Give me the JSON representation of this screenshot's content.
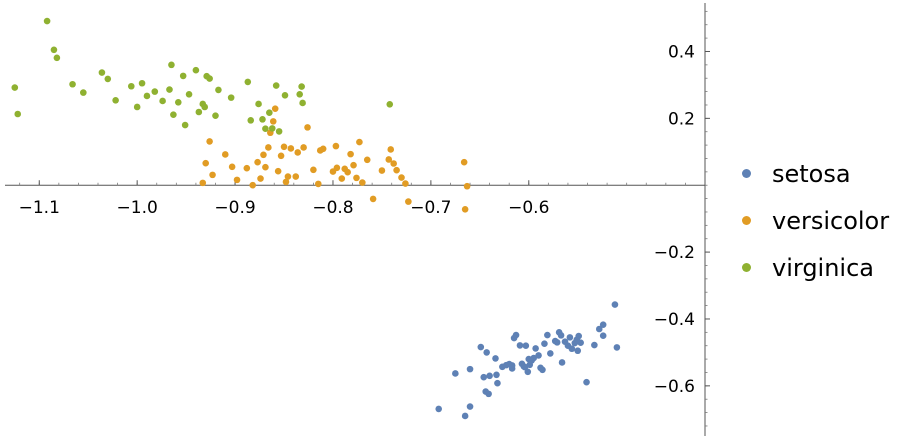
{
  "chart_data": {
    "type": "scatter",
    "xlim": [
      -1.135,
      -0.42
    ],
    "ylim": [
      -0.75,
      0.545
    ],
    "x_ticks": [
      -1.1,
      -1.0,
      -0.9,
      -0.8,
      -0.7,
      -0.6
    ],
    "x_tick_labels": [
      "−1.1",
      "−1.0",
      "−0.9",
      "−0.8",
      "−0.7",
      "−0.6"
    ],
    "y_ticks": [
      0.4,
      0.2,
      -0.2,
      -0.4,
      -0.6
    ],
    "y_tick_labels": [
      "0.4",
      "0.2",
      "−0.2",
      "−0.4",
      "−0.6"
    ],
    "grid": false,
    "legend_position": "right",
    "series": [
      {
        "name": "setosa",
        "color": "#5E81B5",
        "points": [
          [
            -0.692,
            -0.669
          ],
          [
            -0.665,
            -0.69
          ],
          [
            -0.66,
            -0.662
          ],
          [
            -0.675,
            -0.563
          ],
          [
            -0.66,
            -0.55
          ],
          [
            -0.649,
            -0.484
          ],
          [
            -0.643,
            -0.5
          ],
          [
            -0.634,
            -0.518
          ],
          [
            -0.64,
            -0.57
          ],
          [
            -0.646,
            -0.574
          ],
          [
            -0.644,
            -0.617
          ],
          [
            -0.641,
            -0.624
          ],
          [
            -0.633,
            -0.567
          ],
          [
            -0.632,
            -0.592
          ],
          [
            -0.627,
            -0.543
          ],
          [
            -0.623,
            -0.538
          ],
          [
            -0.62,
            -0.535
          ],
          [
            -0.617,
            -0.548
          ],
          [
            -0.617,
            -0.539
          ],
          [
            -0.615,
            -0.457
          ],
          [
            -0.613,
            -0.448
          ],
          [
            -0.609,
            -0.479
          ],
          [
            -0.607,
            -0.534
          ],
          [
            -0.605,
            -0.542
          ],
          [
            -0.603,
            -0.48
          ],
          [
            -0.6,
            -0.52
          ],
          [
            -0.604,
            -0.544
          ],
          [
            -0.601,
            -0.558
          ],
          [
            -0.599,
            -0.537
          ],
          [
            -0.597,
            -0.524
          ],
          [
            -0.595,
            -0.517
          ],
          [
            -0.593,
            -0.488
          ],
          [
            -0.59,
            -0.509
          ],
          [
            -0.588,
            -0.546
          ],
          [
            -0.586,
            -0.552
          ],
          [
            -0.584,
            -0.474
          ],
          [
            -0.581,
            -0.448
          ],
          [
            -0.578,
            -0.503
          ],
          [
            -0.573,
            -0.466
          ],
          [
            -0.571,
            -0.47
          ],
          [
            -0.569,
            -0.44
          ],
          [
            -0.567,
            -0.449
          ],
          [
            -0.566,
            -0.53
          ],
          [
            -0.563,
            -0.468
          ],
          [
            -0.56,
            -0.48
          ],
          [
            -0.558,
            -0.455
          ],
          [
            -0.556,
            -0.489
          ],
          [
            -0.553,
            -0.472
          ],
          [
            -0.551,
            -0.462
          ],
          [
            -0.55,
            -0.495
          ],
          [
            -0.549,
            -0.451
          ],
          [
            -0.547,
            -0.471
          ],
          [
            -0.541,
            -0.589
          ],
          [
            -0.533,
            -0.478
          ],
          [
            -0.528,
            -0.43
          ],
          [
            -0.524,
            -0.45
          ],
          [
            -0.524,
            -0.417
          ],
          [
            -0.512,
            -0.357
          ],
          [
            -0.51,
            -0.485
          ]
        ]
      },
      {
        "name": "versicolor",
        "color": "#E19C24",
        "points": [
          [
            -0.93,
            0.066
          ],
          [
            -0.926,
            0.131
          ],
          [
            -0.923,
            0.031
          ],
          [
            -0.933,
            0.007
          ],
          [
            -0.91,
            0.092
          ],
          [
            -0.903,
            0.055
          ],
          [
            -0.898,
            0.016
          ],
          [
            -0.888,
            0.051
          ],
          [
            -0.882,
            0.0
          ],
          [
            -0.877,
            0.069
          ],
          [
            -0.874,
            0.02
          ],
          [
            -0.871,
            0.091
          ],
          [
            -0.869,
            0.054
          ],
          [
            -0.866,
            0.113
          ],
          [
            -0.864,
            0.157
          ],
          [
            -0.861,
            0.191
          ],
          [
            -0.859,
            0.229
          ],
          [
            -0.856,
            0.042
          ],
          [
            -0.853,
            0.088
          ],
          [
            -0.85,
            0.115
          ],
          [
            -0.848,
            0.01
          ],
          [
            -0.846,
            0.026
          ],
          [
            -0.843,
            0.11
          ],
          [
            -0.838,
            0.026
          ],
          [
            -0.836,
            0.098
          ],
          [
            -0.83,
            0.113
          ],
          [
            -0.826,
            0.173
          ],
          [
            -0.82,
            0.046
          ],
          [
            -0.815,
            0.004
          ],
          [
            -0.813,
            0.104
          ],
          [
            -0.81,
            0.109
          ],
          [
            -0.8,
            0.041
          ],
          [
            -0.797,
            0.117
          ],
          [
            -0.796,
            0.052
          ],
          [
            -0.791,
            0.02
          ],
          [
            -0.788,
            0.049
          ],
          [
            -0.785,
            0.039
          ],
          [
            -0.782,
            0.093
          ],
          [
            -0.779,
            0.06
          ],
          [
            -0.776,
            0.022
          ],
          [
            -0.773,
            0.129
          ],
          [
            -0.77,
            0.008
          ],
          [
            -0.765,
            0.076
          ],
          [
            -0.759,
            -0.041
          ],
          [
            -0.75,
            0.044
          ],
          [
            -0.743,
            0.077
          ],
          [
            -0.741,
            0.107
          ],
          [
            -0.738,
            0.065
          ],
          [
            -0.735,
            0.045
          ],
          [
            -0.73,
            0.023
          ],
          [
            -0.726,
            0.005
          ],
          [
            -0.723,
            -0.049
          ],
          [
            -0.666,
            0.069
          ],
          [
            -0.663,
            -0.003
          ],
          [
            -0.665,
            -0.072
          ]
        ]
      },
      {
        "name": "virginica",
        "color": "#8FB131",
        "points": [
          [
            -1.125,
            0.292
          ],
          [
            -1.122,
            0.213
          ],
          [
            -1.092,
            0.491
          ],
          [
            -1.085,
            0.405
          ],
          [
            -1.082,
            0.381
          ],
          [
            -1.066,
            0.302
          ],
          [
            -1.055,
            0.277
          ],
          [
            -1.036,
            0.337
          ],
          [
            -1.03,
            0.318
          ],
          [
            -1.022,
            0.254
          ],
          [
            -1.006,
            0.296
          ],
          [
            -1.0,
            0.234
          ],
          [
            -0.995,
            0.305
          ],
          [
            -0.99,
            0.267
          ],
          [
            -0.982,
            0.28
          ],
          [
            -0.974,
            0.252
          ],
          [
            -0.967,
            0.286
          ],
          [
            -0.965,
            0.36
          ],
          [
            -0.963,
            0.211
          ],
          [
            -0.958,
            0.248
          ],
          [
            -0.953,
            0.327
          ],
          [
            -0.951,
            0.18
          ],
          [
            -0.947,
            0.272
          ],
          [
            -0.94,
            0.344
          ],
          [
            -0.937,
            0.219
          ],
          [
            -0.933,
            0.243
          ],
          [
            -0.931,
            0.234
          ],
          [
            -0.929,
            0.326
          ],
          [
            -0.926,
            0.319
          ],
          [
            -0.92,
            0.208
          ],
          [
            -0.917,
            0.285
          ],
          [
            -0.904,
            0.262
          ],
          [
            -0.887,
            0.309
          ],
          [
            -0.884,
            0.194
          ],
          [
            -0.876,
            0.243
          ],
          [
            -0.872,
            0.197
          ],
          [
            -0.869,
            0.169
          ],
          [
            -0.865,
            0.217
          ],
          [
            -0.862,
            0.17
          ],
          [
            -0.858,
            0.298
          ],
          [
            -0.855,
            0.161
          ],
          [
            -0.849,
            0.269
          ],
          [
            -0.834,
            0.272
          ],
          [
            -0.832,
            0.295
          ],
          [
            -0.831,
            0.246
          ],
          [
            -0.742,
            0.242
          ]
        ]
      }
    ]
  }
}
